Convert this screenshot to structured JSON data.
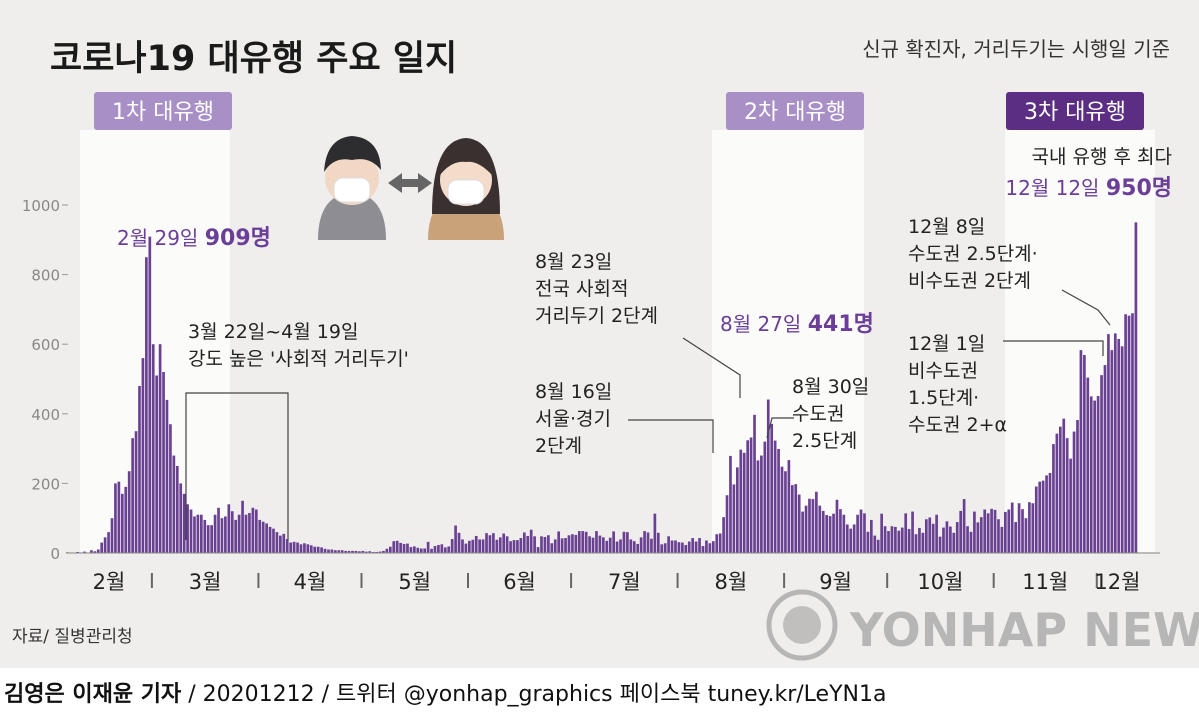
{
  "chart_data": {
    "type": "bar",
    "title": "코로나19 대유행 주요 일지",
    "subtitle": "신규 확진자, 거리두기는 시행일 기준",
    "xlabel": "",
    "ylabel": "",
    "ylim": [
      0,
      1000
    ],
    "y_ticks": [
      0,
      200,
      400,
      600,
      800,
      1000
    ],
    "grid": false,
    "x_months": [
      "2월",
      "3월",
      "4월",
      "5월",
      "6월",
      "7월",
      "8월",
      "9월",
      "10월",
      "11월",
      "12월"
    ],
    "waves": [
      "1차 대유행",
      "2차 대유행",
      "3차 대유행"
    ],
    "series": [
      {
        "color": "#6a4192",
        "segments": [
          {
            "month": "2월",
            "values": [
              2,
              1,
              1,
              3,
              1,
              4,
              1,
              8,
              5,
              10,
              30,
              45,
              60,
              100,
              200,
              205,
              170,
              190,
              235,
              330,
              350,
              480,
              560,
              850,
              909
            ]
          },
          {
            "month": "3월",
            "values": [
              600,
              510,
              600,
              520,
              440,
              370,
              280,
              250,
              200,
              170,
              140,
              125,
              105,
              110,
              110,
              95,
              80,
              80,
              110,
              130,
              100,
              105,
              140,
              120,
              95,
              110,
              150,
              110,
              115,
              130,
              125
            ]
          },
          {
            "month": "4월",
            "values": [
              95,
              90,
              85,
              75,
              70,
              60,
              50,
              55,
              40,
              30,
              32,
              30,
              25,
              28,
              25,
              22,
              18,
              18,
              16,
              12,
              10,
              10,
              8,
              8,
              8,
              6,
              6,
              6,
              6,
              5
            ]
          },
          {
            "month": "5월",
            "values": [
              6,
              4,
              5,
              3,
              3,
              4,
              6,
              12,
              18,
              34,
              35,
              29,
              26,
              27,
              17,
              19,
              15,
              13,
              13,
              32,
              12,
              20,
              23,
              25,
              16,
              19,
              40,
              79,
              58,
              39,
              27
            ]
          },
          {
            "month": "6월",
            "values": [
              35,
              38,
              49,
              39,
              39,
              57,
              51,
              57,
              38,
              45,
              56,
              48,
              34,
              37,
              37,
              43,
              59,
              49,
              67,
              48,
              17,
              48,
              46,
              51,
              28,
              39,
              62,
              42,
              43,
              51
            ]
          },
          {
            "month": "7월",
            "values": [
              54,
              52,
              63,
              63,
              61,
              48,
              44,
              63,
              50,
              45,
              35,
              44,
              62,
              33,
              39,
              61,
              60,
              39,
              34,
              26,
              45,
              63,
              59,
              41,
              113,
              58,
              25,
              28,
              48,
              36,
              36
            ]
          },
          {
            "month": "8월",
            "values": [
              31,
              30,
              23,
              33,
              43,
              33,
              43,
              20,
              36,
              28,
              34,
              54,
              56,
              103,
              166,
              279,
              197,
              246,
              297,
              288,
              324,
              332,
              397,
              266,
              280,
              320,
              441,
              371,
              323,
              299,
              248
            ]
          },
          {
            "month": "9월",
            "values": [
              235,
              267,
              195,
              198,
              168,
              119,
              136,
              156,
              155,
              176,
              136,
              121,
              109,
              106,
              113,
              153,
              126,
              110,
              82,
              70,
              82,
              110,
              125,
              114,
              61,
              95,
              50,
              38,
              113,
              77
            ]
          },
          {
            "month": "10월",
            "values": [
              63,
              77,
              75,
              64,
              73,
              114,
              69,
              119,
              54,
              72,
              58,
              97,
              102,
              84,
              110,
              47,
              73,
              91,
              76,
              58,
              89,
              121,
              155,
              77,
              61,
              119,
              88,
              103,
              125,
              114,
              127
            ]
          },
          {
            "month": "11월",
            "values": [
              124,
              97,
              75,
              118,
              125,
              145,
              89,
              143,
              126,
              100,
              146,
              143,
              191,
              205,
              208,
              223,
              230,
              313,
              343,
              363,
              386,
              330,
              271,
              349,
              382,
              583,
              569,
              504,
              450,
              438
            ]
          },
          {
            "month": "12월",
            "values": [
              451,
              511,
              540,
              629,
              583,
              631,
              615,
              594,
              686,
              682,
              689,
              950
            ]
          }
        ]
      }
    ],
    "annotations": {
      "feb29": {
        "date": "2월 29일",
        "value": "909명"
      },
      "distancing": {
        "line1": "3월 22일~4월 19일",
        "line2": "강도 높은 '사회적 거리두기'"
      },
      "aug16": {
        "line1": "8월 16일",
        "line2": "서울·경기",
        "line3": "2단계"
      },
      "aug23": {
        "line1": "8월 23일",
        "line2": "전국 사회적",
        "line3": "거리두기 2단계"
      },
      "aug27": {
        "date": "8월 27일",
        "value": "441명"
      },
      "aug30": {
        "line1": "8월 30일",
        "line2": "수도권",
        "line3": "2.5단계"
      },
      "dec8": {
        "line1": "12월 8일",
        "line2": "수도권 2.5단계·",
        "line3": "비수도권 2단계"
      },
      "dec1": {
        "line1": "12월 1일",
        "line2": "비수도권",
        "line3": "1.5단계·",
        "line4": "수도권 2+α"
      },
      "dec12": {
        "line1": "국내 유행 후 최다",
        "date": "12월 12일",
        "value": "950명"
      }
    },
    "source": "자료/ 질병관리청"
  },
  "footer": {
    "reporters": "김영은 이재윤 기자",
    "details": " / 20201212 / 트위터 @yonhap_graphics  페이스북 tuney.kr/LeYN1a"
  },
  "colors": {
    "bar": "#6a4192",
    "highlight_text": "#6b3f98",
    "badge": "#a88fc6",
    "badge_dark": "#5b2e83",
    "panel": "#efeeec"
  }
}
